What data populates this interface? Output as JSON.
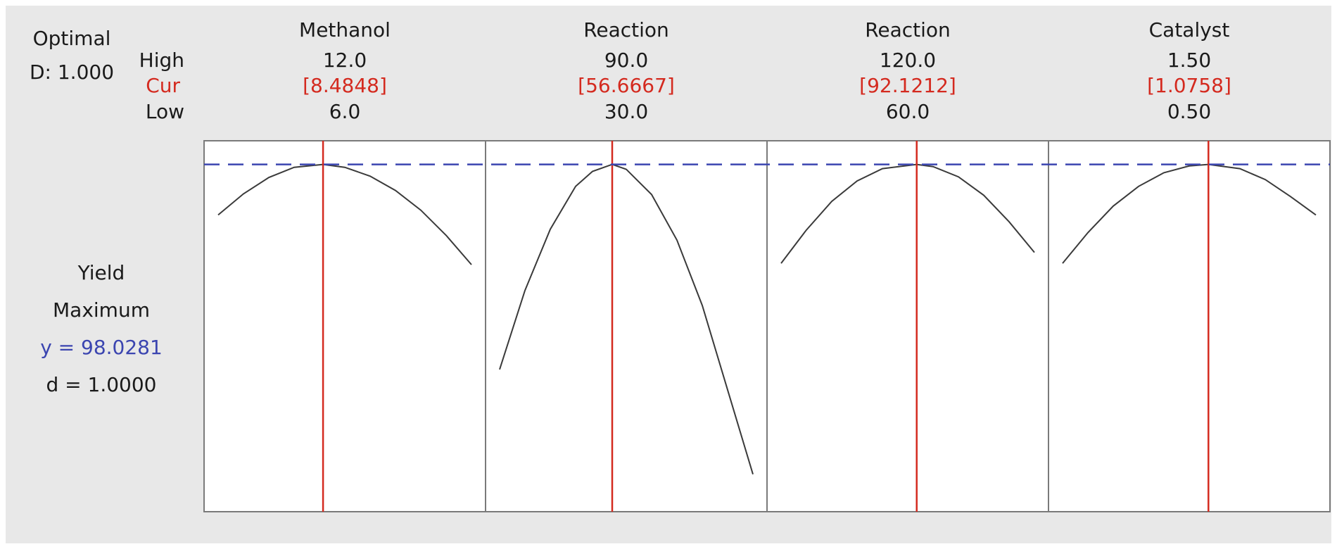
{
  "optimal": {
    "label": "Optimal",
    "d_text": "D: 1.000"
  },
  "row_labels": {
    "high": "High",
    "cur": "Cur",
    "low": "Low"
  },
  "response": {
    "name": "Yield",
    "goal": "Maximum",
    "y_text": "y = 98.0281",
    "d_text": "d = 1.0000"
  },
  "colors": {
    "background": "#e8e8e8",
    "panel": "#ffffff",
    "border": "#7a7a7a",
    "curve": "#3a3a3a",
    "current": "#d42a1f",
    "target": "#3b45b0",
    "text": "#1a1a1a"
  },
  "chart_data": {
    "type": "line",
    "title": "",
    "grid": false,
    "target_line_value": 98.0281,
    "ylim": [
      47.0,
      101.5
    ],
    "factors": [
      {
        "name": "Methanol",
        "high": "12.0",
        "cur": "[8.4848]",
        "low": "6.0",
        "low_value": 6.0,
        "high_value": 12.0,
        "cur_value": 8.4848,
        "x": [
          6.0,
          6.6,
          7.2,
          7.8,
          8.4848,
          9.0,
          9.6,
          10.2,
          10.8,
          11.4,
          12.0
        ],
        "y": [
          90.6,
          93.7,
          96.1,
          97.6,
          98.03,
          97.6,
          96.3,
          94.2,
          91.3,
          87.6,
          83.3
        ]
      },
      {
        "name": "Reaction",
        "high": "90.0",
        "cur": "[56.6667]",
        "low": "30.0",
        "low_value": 30.0,
        "high_value": 90.0,
        "cur_value": 56.6667,
        "x": [
          30.0,
          36.0,
          42.0,
          48.0,
          52.0,
          56.6667,
          60.0,
          66.0,
          72.0,
          78.0,
          84.0,
          90.0
        ],
        "y": [
          67.9,
          79.5,
          88.5,
          94.8,
          97.0,
          98.03,
          97.3,
          93.6,
          86.9,
          77.3,
          64.9,
          52.5
        ]
      },
      {
        "name": "Reaction",
        "high": "120.0",
        "cur": "[92.1212]",
        "low": "60.0",
        "low_value": 60.0,
        "high_value": 120.0,
        "cur_value": 92.1212,
        "x": [
          60.0,
          66.0,
          72.0,
          78.0,
          84.0,
          92.1212,
          96.0,
          102.0,
          108.0,
          114.0,
          120.0
        ],
        "y": [
          83.5,
          88.4,
          92.6,
          95.6,
          97.4,
          98.03,
          97.7,
          96.2,
          93.5,
          89.6,
          85.1
        ]
      },
      {
        "name": "Catalyst",
        "high": "1.50",
        "cur": "[1.0758]",
        "low": "0.50",
        "low_value": 0.5,
        "high_value": 1.5,
        "cur_value": 1.0758,
        "x": [
          0.5,
          0.6,
          0.7,
          0.8,
          0.9,
          1.0,
          1.0758,
          1.2,
          1.3,
          1.4,
          1.5
        ],
        "y": [
          83.5,
          88.0,
          91.9,
          94.8,
          96.8,
          97.8,
          98.03,
          97.4,
          95.8,
          93.3,
          90.6
        ]
      }
    ]
  }
}
